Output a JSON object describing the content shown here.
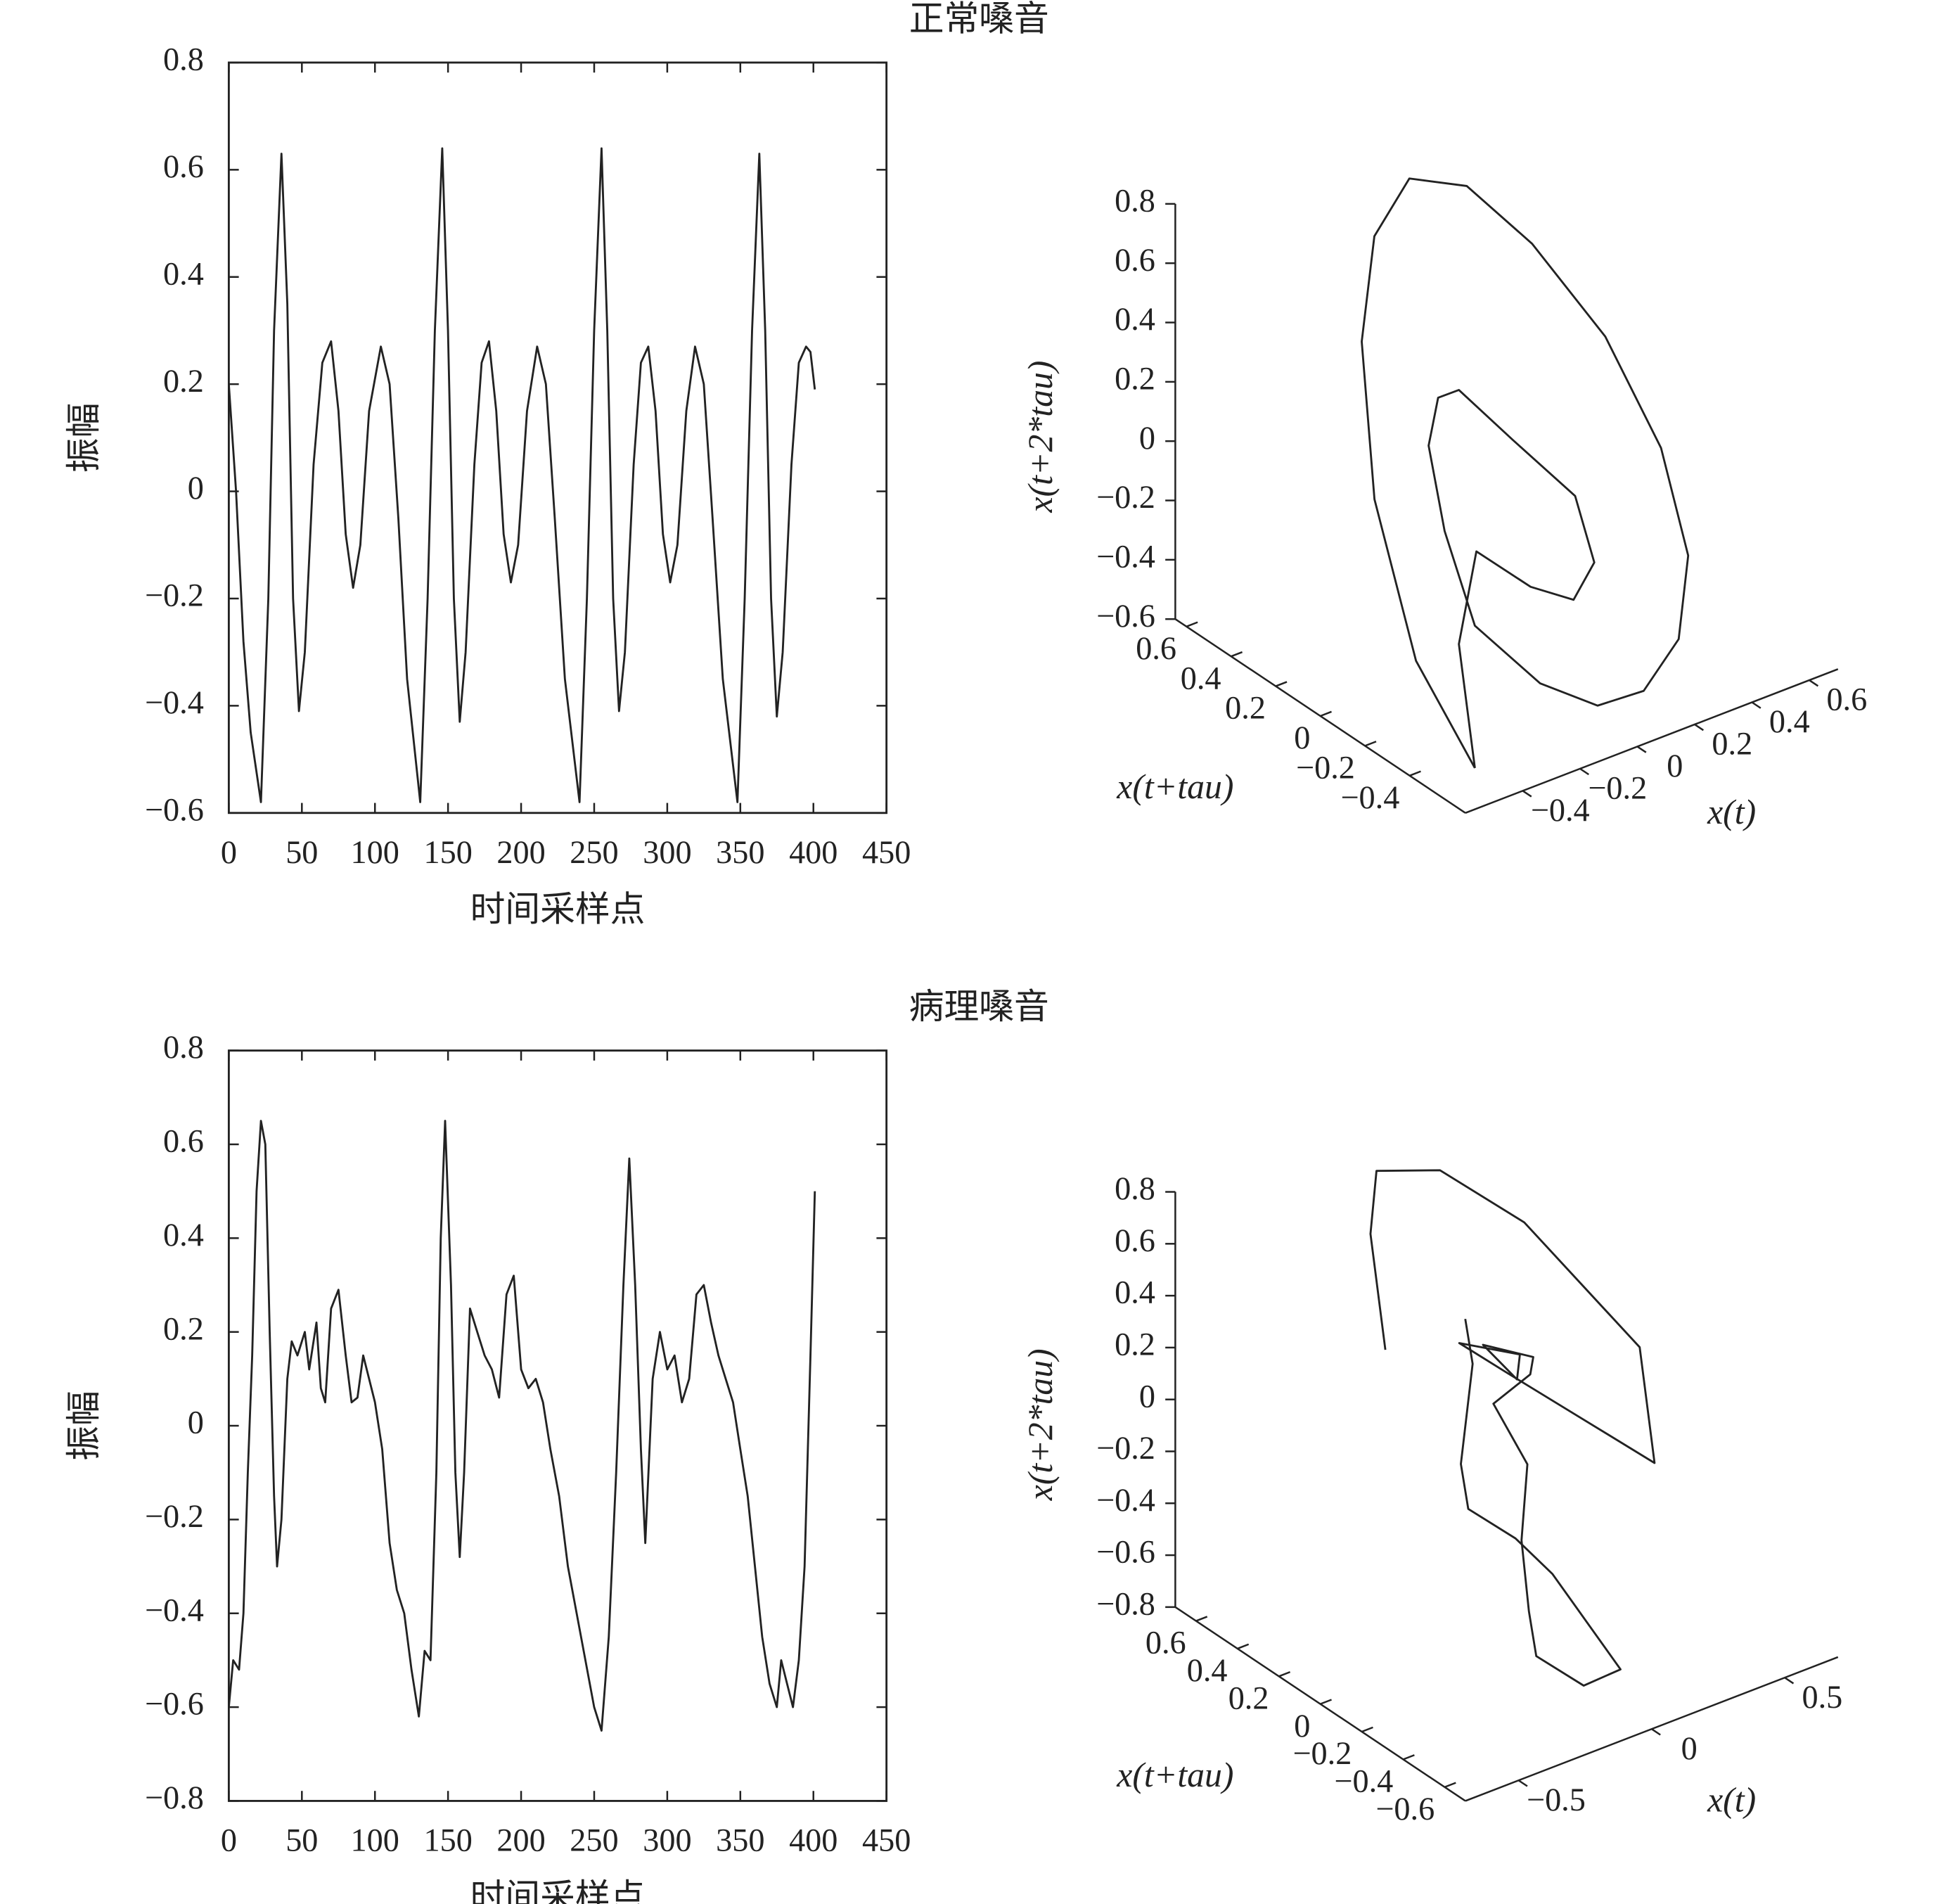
{
  "chart_data": [
    {
      "type": "line",
      "title": "正常嗓音",
      "xlabel": "时间采样点",
      "ylabel": "振幅",
      "color": "#222222",
      "xlim": [
        0,
        450
      ],
      "ylim": [
        -0.6,
        0.8
      ],
      "xticks": [
        0,
        50,
        100,
        150,
        200,
        250,
        300,
        350,
        400,
        450
      ],
      "yticks": [
        {
          "value": -0.6,
          "label": "−0.6"
        },
        {
          "value": -0.4,
          "label": "−0.4"
        },
        {
          "value": -0.2,
          "label": "−0.2"
        },
        0,
        0.2,
        0.4,
        0.6,
        0.8
      ],
      "x": [
        0,
        5,
        10,
        15,
        22,
        27,
        31,
        36,
        40,
        44,
        48,
        52,
        58,
        64,
        70,
        75,
        80,
        85,
        90,
        96,
        104,
        110,
        116,
        122,
        131,
        136,
        141,
        146,
        150,
        154,
        158,
        162,
        168,
        173,
        178,
        183,
        188,
        193,
        198,
        204,
        211,
        217,
        223,
        230,
        240,
        245,
        250,
        255,
        259,
        263,
        267,
        271,
        277,
        282,
        287,
        292,
        297,
        302,
        307,
        313,
        319,
        325,
        331,
        338,
        348,
        353,
        358,
        363,
        367,
        371,
        375,
        379,
        385,
        390,
        395,
        398,
        401
      ],
      "values": [
        0.2,
        0.0,
        -0.28,
        -0.45,
        -0.58,
        -0.2,
        0.3,
        0.63,
        0.35,
        -0.2,
        -0.41,
        -0.3,
        0.05,
        0.24,
        0.28,
        0.15,
        -0.08,
        -0.18,
        -0.1,
        0.15,
        0.27,
        0.2,
        -0.05,
        -0.35,
        -0.58,
        -0.2,
        0.3,
        0.64,
        0.3,
        -0.2,
        -0.43,
        -0.3,
        0.05,
        0.24,
        0.28,
        0.15,
        -0.08,
        -0.17,
        -0.1,
        0.15,
        0.27,
        0.2,
        -0.05,
        -0.35,
        -0.58,
        -0.2,
        0.3,
        0.64,
        0.3,
        -0.2,
        -0.41,
        -0.3,
        0.05,
        0.24,
        0.27,
        0.15,
        -0.08,
        -0.17,
        -0.1,
        0.15,
        0.27,
        0.2,
        -0.05,
        -0.35,
        -0.58,
        -0.2,
        0.3,
        0.63,
        0.3,
        -0.2,
        -0.42,
        -0.3,
        0.05,
        0.24,
        0.27,
        0.26,
        0.19
      ]
    },
    {
      "type": "line3d",
      "xlabel": "x(t)",
      "ylabel": "x(t+tau)",
      "zlabel": "x(t+2*tau)",
      "color": "#222222",
      "xlim": [
        -0.6,
        0.7
      ],
      "ylim": [
        -0.65,
        0.65
      ],
      "zlim": [
        -0.6,
        0.8
      ],
      "xticks": [
        {
          "value": -0.4,
          "label": "−0.4"
        },
        {
          "value": -0.2,
          "label": "−0.2"
        },
        0,
        0.2,
        0.4,
        0.6
      ],
      "yticks": [
        {
          "value": -0.4,
          "label": "−0.4"
        },
        {
          "value": -0.2,
          "label": "−0.2"
        },
        0,
        0.2,
        0.4,
        0.6
      ],
      "zticks": [
        {
          "value": -0.6,
          "label": "−0.6"
        },
        {
          "value": -0.4,
          "label": "−0.4"
        },
        {
          "value": -0.2,
          "label": "−0.2"
        },
        0,
        0.2,
        0.4,
        0.6,
        0.8
      ],
      "x": [
        -0.45,
        -0.5,
        -0.45,
        -0.3,
        -0.1,
        0.1,
        0.3,
        0.45,
        0.55,
        0.55,
        0.45,
        0.3,
        0.1,
        -0.1,
        -0.3,
        -0.45,
        -0.4,
        -0.3,
        -0.15,
        0.0,
        0.15,
        0.25,
        0.2,
        0.05,
        -0.1,
        -0.25,
        -0.35,
        -0.45
      ],
      "y": [
        -0.5,
        -0.3,
        -0.05,
        0.2,
        0.4,
        0.5,
        0.5,
        0.4,
        0.2,
        -0.05,
        -0.3,
        -0.45,
        -0.55,
        -0.6,
        -0.6,
        -0.5,
        -0.3,
        -0.1,
        0.05,
        0.15,
        0.1,
        -0.05,
        -0.2,
        -0.3,
        -0.3,
        -0.25,
        -0.3,
        -0.5
      ],
      "z": [
        -0.58,
        -0.3,
        0.1,
        0.45,
        0.63,
        0.7,
        0.6,
        0.4,
        0.15,
        -0.1,
        -0.3,
        -0.45,
        -0.5,
        -0.45,
        -0.3,
        -0.1,
        0.1,
        0.25,
        0.28,
        0.2,
        0.0,
        -0.15,
        -0.28,
        -0.3,
        -0.2,
        -0.05,
        -0.3,
        -0.58
      ]
    },
    {
      "type": "line",
      "title": "病理嗓音",
      "xlabel": "时间采样点",
      "ylabel": "振幅",
      "color": "#222222",
      "xlim": [
        0,
        450
      ],
      "ylim": [
        -0.8,
        0.8
      ],
      "xticks": [
        0,
        50,
        100,
        150,
        200,
        250,
        300,
        350,
        400,
        450
      ],
      "yticks": [
        {
          "value": -0.8,
          "label": "−0.8"
        },
        {
          "value": -0.6,
          "label": "−0.6"
        },
        {
          "value": -0.4,
          "label": "−0.4"
        },
        {
          "value": -0.2,
          "label": "−0.2"
        },
        0,
        0.2,
        0.4,
        0.6,
        0.8
      ],
      "x": [
        0,
        3,
        7,
        10,
        13,
        16,
        19,
        22,
        25,
        28,
        31,
        33,
        36,
        40,
        43,
        47,
        52,
        55,
        60,
        63,
        66,
        70,
        75,
        80,
        84,
        88,
        92,
        96,
        100,
        105,
        110,
        115,
        120,
        125,
        130,
        134,
        138,
        142,
        145,
        148,
        152,
        155,
        158,
        161,
        165,
        170,
        175,
        180,
        185,
        190,
        195,
        200,
        205,
        210,
        215,
        220,
        226,
        232,
        238,
        244,
        250,
        255,
        260,
        265,
        270,
        274,
        278,
        282,
        285,
        290,
        295,
        300,
        305,
        310,
        315,
        320,
        325,
        330,
        335,
        340,
        345,
        350,
        355,
        360,
        365,
        370,
        375,
        378,
        382,
        386,
        390,
        394,
        398,
        401
      ],
      "values": [
        -0.6,
        -0.5,
        -0.52,
        -0.4,
        -0.1,
        0.15,
        0.5,
        0.65,
        0.6,
        0.2,
        -0.15,
        -0.3,
        -0.2,
        0.1,
        0.18,
        0.15,
        0.2,
        0.12,
        0.22,
        0.08,
        0.05,
        0.25,
        0.29,
        0.15,
        0.05,
        0.06,
        0.15,
        0.1,
        0.05,
        -0.05,
        -0.25,
        -0.35,
        -0.4,
        -0.52,
        -0.62,
        -0.48,
        -0.5,
        -0.1,
        0.4,
        0.65,
        0.3,
        -0.1,
        -0.28,
        -0.1,
        0.25,
        0.2,
        0.15,
        0.12,
        0.06,
        0.28,
        0.32,
        0.12,
        0.08,
        0.1,
        0.05,
        -0.05,
        -0.15,
        -0.3,
        -0.4,
        -0.5,
        -0.6,
        -0.65,
        -0.45,
        -0.1,
        0.3,
        0.57,
        0.3,
        -0.05,
        -0.25,
        0.1,
        0.2,
        0.12,
        0.15,
        0.05,
        0.1,
        0.28,
        0.3,
        0.22,
        0.15,
        0.1,
        0.05,
        -0.05,
        -0.15,
        -0.3,
        -0.45,
        -0.55,
        -0.6,
        -0.5,
        -0.55,
        -0.6,
        -0.5,
        -0.3,
        0.15,
        0.5
      ]
    },
    {
      "type": "line3d",
      "xlabel": "x(t)",
      "ylabel": "x(t+tau)",
      "zlabel": "x(t+2*tau)",
      "color": "#222222",
      "xlim": [
        -0.7,
        0.7
      ],
      "ylim": [
        -0.7,
        0.7
      ],
      "zlim": [
        -0.8,
        0.8
      ],
      "xticks": [
        {
          "value": -0.5,
          "label": "−0.5"
        },
        0,
        0.5
      ],
      "yticks": [
        {
          "value": -0.6,
          "label": "−0.6"
        },
        {
          "value": -0.4,
          "label": "−0.4"
        },
        {
          "value": -0.2,
          "label": "−0.2"
        },
        0,
        0.2,
        0.4,
        0.6
      ],
      "zticks": [
        {
          "value": -0.8,
          "label": "−0.8"
        },
        {
          "value": -0.6,
          "label": "−0.6"
        },
        {
          "value": -0.4,
          "label": "−0.4"
        },
        {
          "value": -0.2,
          "label": "−0.2"
        },
        0,
        0.2,
        0.4,
        0.6,
        0.8
      ],
      "x": [
        -0.3,
        -0.2,
        -0.1,
        0.1,
        0.3,
        0.5,
        0.4,
        0.2,
        0.0,
        -0.1,
        0.05,
        0.0,
        -0.05,
        0.1,
        0.05,
        -0.05,
        0.0,
        -0.1,
        -0.15,
        -0.2,
        -0.1,
        0.0,
        -0.05,
        -0.1,
        -0.2,
        -0.3,
        -0.25,
        -0.15,
        -0.05,
        0.0
      ],
      "y": [
        0.2,
        0.4,
        0.5,
        0.45,
        0.3,
        0.0,
        -0.2,
        -0.1,
        0.0,
        0.1,
        0.0,
        -0.05,
        0.05,
        0.0,
        -0.05,
        0.0,
        -0.1,
        -0.2,
        -0.3,
        -0.4,
        -0.5,
        -0.55,
        -0.45,
        -0.35,
        -0.3,
        -0.2,
        -0.1,
        0.0,
        0.1,
        0.2
      ],
      "z": [
        0.3,
        0.6,
        0.75,
        0.7,
        0.5,
        0.1,
        -0.2,
        0.0,
        0.2,
        0.3,
        0.25,
        0.2,
        0.3,
        0.22,
        0.2,
        0.1,
        -0.1,
        -0.3,
        -0.5,
        -0.6,
        -0.7,
        -0.65,
        -0.5,
        -0.35,
        -0.2,
        -0.1,
        0.0,
        0.1,
        0.2,
        0.3
      ]
    }
  ]
}
